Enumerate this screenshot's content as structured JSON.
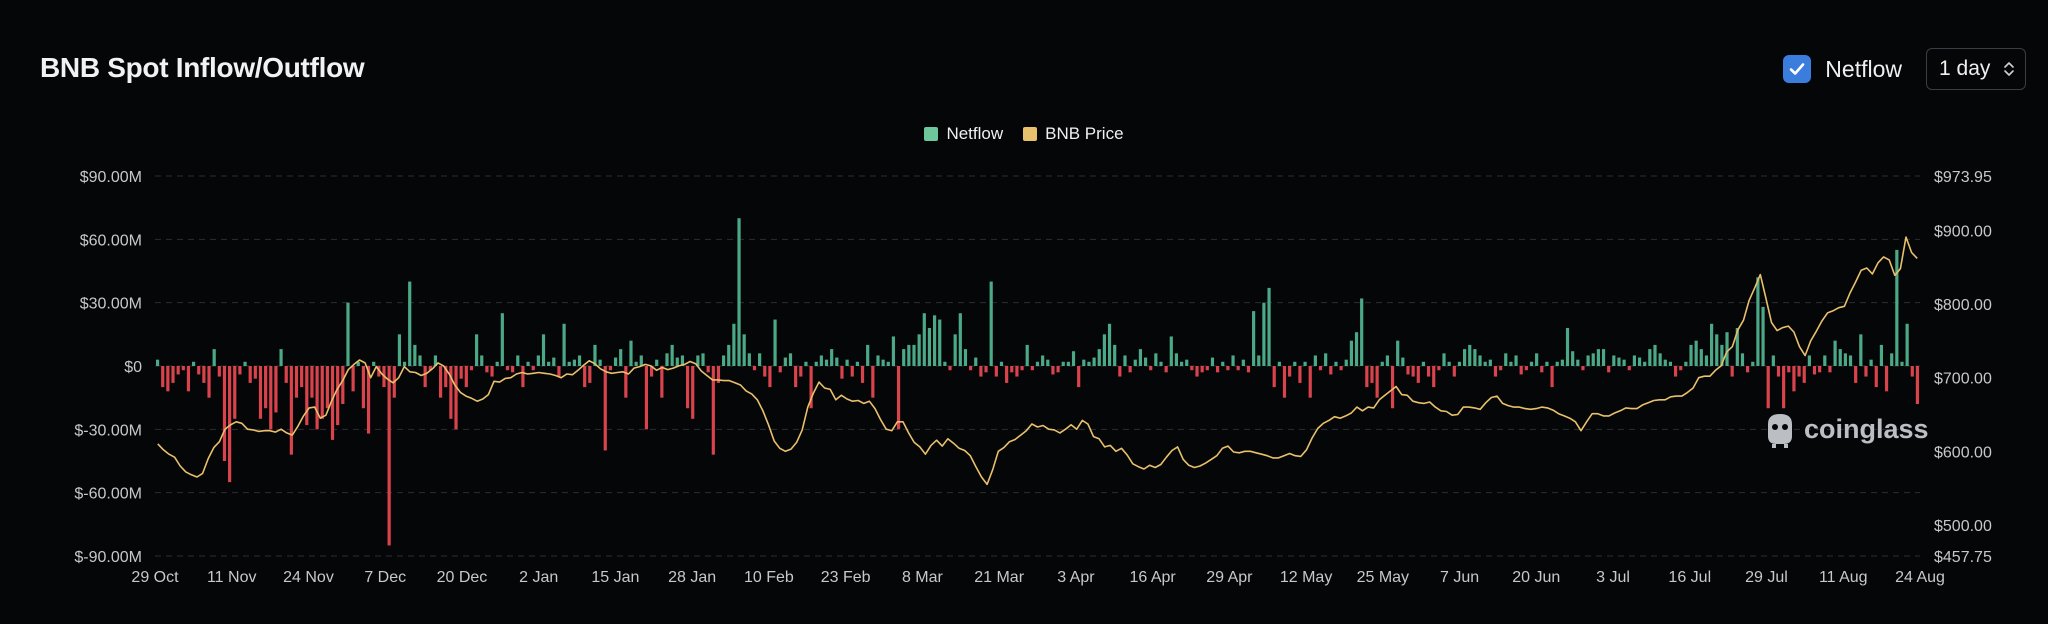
{
  "header": {
    "title": "BNB Spot Inflow/Outflow",
    "netflow_toggle": {
      "label": "Netflow",
      "checked": true
    },
    "interval": {
      "value": "1 day"
    }
  },
  "legend": [
    {
      "name": "Netflow",
      "color": "#6dc79a"
    },
    {
      "name": "BNB Price",
      "color": "#e9c06b"
    }
  ],
  "watermark": "coinglass",
  "colors": {
    "positive": "#4ca987",
    "negative": "#d9434b",
    "price_line": "#e9c06b"
  },
  "chart_data": {
    "type": "bar",
    "title": "BNB Spot Inflow/Outflow",
    "grid": true,
    "legend_position": "top-center",
    "y_left": {
      "ticks": [
        "$90.00M",
        "$60.00M",
        "$30.00M",
        "$0",
        "$-30.00M",
        "$-60.00M",
        "$-90.00M"
      ],
      "range": [
        -90,
        90
      ],
      "unit": "$M"
    },
    "y_right": {
      "ticks": [
        "$973.95",
        "$900.00",
        "$800.00",
        "$700.00",
        "$600.00",
        "$500.00",
        "$457.75"
      ],
      "range": [
        457.75,
        973.95
      ]
    },
    "x_ticks": [
      "29 Oct",
      "11 Nov",
      "24 Nov",
      "7 Dec",
      "20 Dec",
      "2 Jan",
      "15 Jan",
      "28 Jan",
      "10 Feb",
      "23 Feb",
      "8 Mar",
      "21 Mar",
      "3 Apr",
      "16 Apr",
      "29 Apr",
      "12 May",
      "25 May",
      "7 Jun",
      "20 Jun",
      "3 Jul",
      "16 Jul",
      "29 Jul",
      "11 Aug",
      "24 Aug"
    ],
    "series": [
      {
        "name": "Netflow",
        "type": "bar",
        "unit": "$M",
        "values": [
          3,
          -10,
          -12,
          -8,
          -4,
          -2,
          -12,
          2,
          -4,
          -8,
          -15,
          8,
          -5,
          -45,
          -55,
          -25,
          -4,
          2,
          -8,
          -6,
          -25,
          -20,
          -30,
          -22,
          8,
          -8,
          -42,
          -15,
          -10,
          -28,
          -15,
          -30,
          -25,
          -20,
          -35,
          -28,
          -18,
          30,
          -12,
          2,
          -20,
          -32,
          2,
          -5,
          -10,
          -85,
          -15,
          15,
          2,
          40,
          10,
          5,
          -10,
          -2,
          5,
          -15,
          -10,
          -25,
          -30,
          -6,
          -10,
          -2,
          15,
          5,
          -3,
          -5,
          2,
          25,
          -2,
          -3,
          5,
          -10,
          2,
          -2,
          5,
          15,
          2,
          4,
          -5,
          20,
          2,
          3,
          5,
          -10,
          -8,
          10,
          3,
          -40,
          -2,
          4,
          8,
          -15,
          12,
          2,
          5,
          -30,
          -5,
          3,
          -15,
          6,
          10,
          4,
          5,
          -20,
          -25,
          5,
          6,
          -3,
          -42,
          -8,
          5,
          10,
          20,
          70,
          15,
          6,
          -2,
          6,
          -5,
          -10,
          22,
          -3,
          4,
          6,
          -10,
          -5,
          2,
          -20,
          2,
          5,
          3,
          8,
          4,
          -6,
          3,
          -5,
          2,
          -8,
          10,
          -15,
          5,
          3,
          2,
          14,
          -30,
          8,
          10,
          10,
          15,
          25,
          18,
          24,
          22,
          2,
          -2,
          15,
          25,
          8,
          -2,
          4,
          -5,
          -3,
          40,
          -5,
          2,
          -8,
          -3,
          -5,
          -2,
          10,
          -2,
          2,
          5,
          3,
          -4,
          -3,
          2,
          2,
          7,
          -10,
          3,
          2,
          4,
          8,
          15,
          20,
          10,
          -5,
          5,
          -3,
          3,
          8,
          4,
          -2,
          6,
          2,
          -3,
          14,
          6,
          2,
          3,
          -2,
          -5,
          -3,
          -2,
          4,
          -3,
          2,
          -2,
          5,
          -2,
          3,
          -3,
          26,
          5,
          30,
          37,
          -10,
          2,
          -15,
          -5,
          2,
          -8,
          2,
          -15,
          5,
          -2,
          6,
          -4,
          2,
          -2,
          3,
          12,
          16,
          32,
          -10,
          -8,
          -15,
          2,
          5,
          -20,
          12,
          4,
          -4,
          -5,
          -8,
          2,
          -5,
          -10,
          -2,
          6,
          2,
          -5,
          2,
          8,
          10,
          8,
          5,
          2,
          3,
          -5,
          -2,
          6,
          2,
          5,
          -4,
          -2,
          2,
          6,
          -3,
          2,
          -10,
          2,
          3,
          18,
          7,
          3,
          -2,
          5,
          6,
          8,
          8,
          -3,
          5,
          4,
          3,
          -2,
          5,
          4,
          2,
          8,
          10,
          6,
          3,
          2,
          -5,
          -2,
          2,
          10,
          12,
          8,
          5,
          20,
          15,
          10,
          16,
          -5,
          18,
          6,
          -3,
          2,
          42,
          28,
          -20,
          5,
          -5,
          -20,
          -3,
          -12,
          -5,
          -8,
          5,
          -4,
          -3,
          5,
          -3,
          12,
          8,
          6,
          5,
          -8,
          15,
          -5,
          3,
          -10,
          10,
          -12,
          6,
          55,
          2,
          20,
          -5,
          -18
        ]
      },
      {
        "name": "BNB Price",
        "type": "line",
        "unit": "$",
        "values": [
          610,
          602,
          596,
          592,
          580,
          572,
          568,
          565,
          570,
          590,
          605,
          613,
          630,
          636,
          640,
          638,
          630,
          629,
          627,
          628,
          628,
          626,
          630,
          625,
          622,
          634,
          648,
          659,
          660,
          645,
          649,
          668,
          684,
          696,
          711,
          718,
          724,
          720,
          700,
          715,
          705,
          698,
          693,
          700,
          715,
          708,
          707,
          703,
          706,
          712,
          720,
          716,
          705,
          690,
          680,
          675,
          672,
          668,
          671,
          677,
          695,
          694,
          699,
          700,
          705,
          707,
          705,
          706,
          707,
          706,
          705,
          703,
          700,
          705,
          704,
          710,
          717,
          723,
          719,
          712,
          708,
          706,
          707,
          708,
          705,
          713,
          715,
          718,
          716,
          710,
          714,
          711,
          713,
          716,
          718,
          722,
          719,
          709,
          703,
          697,
          697,
          696,
          696,
          693,
          690,
          682,
          678,
          670,
          655,
          636,
          614,
          604,
          600,
          603,
          612,
          629,
          660,
          679,
          694,
          686,
          684,
          670,
          676,
          671,
          668,
          669,
          665,
          668,
          658,
          643,
          630,
          628,
          640,
          640,
          625,
          612,
          606,
          596,
          608,
          615,
          607,
          617,
          611,
          604,
          601,
          594,
          579,
          565,
          555,
          575,
          600,
          605,
          613,
          616,
          622,
          628,
          637,
          633,
          635,
          630,
          629,
          625,
          630,
          636,
          630,
          642,
          637,
          620,
          617,
          606,
          608,
          600,
          604,
          595,
          583,
          579,
          576,
          581,
          578,
          582,
          592,
          601,
          606,
          589,
          581,
          578,
          580,
          584,
          589,
          594,
          604,
          607,
          599,
          598,
          600,
          600,
          598,
          596,
          594,
          591,
          591,
          594,
          597,
          594,
          593,
          602,
          618,
          631,
          638,
          642,
          647,
          645,
          648,
          652,
          660,
          655,
          660,
          659,
          670,
          676,
          682,
          688,
          677,
          676,
          668,
          666,
          665,
          667,
          660,
          655,
          654,
          649,
          650,
          660,
          660,
          659,
          657,
          666,
          673,
          675,
          665,
          662,
          660,
          660,
          658,
          657,
          658,
          660,
          659,
          656,
          651,
          648,
          645,
          640,
          628,
          640,
          651,
          651,
          648,
          648,
          652,
          655,
          659,
          658,
          658,
          663,
          666,
          669,
          670,
          670,
          674,
          675,
          675,
          680,
          686,
          700,
          702,
          702,
          710,
          716,
          735,
          742,
          765,
          778,
          805,
          822,
          840,
          808,
          775,
          764,
          768,
          770,
          762,
          742,
          730,
          750,
          763,
          777,
          788,
          791,
          795,
          797,
          815,
          830,
          846,
          849,
          841,
          856,
          864,
          860,
          839,
          848,
          891,
          870,
          862
        ]
      }
    ]
  }
}
